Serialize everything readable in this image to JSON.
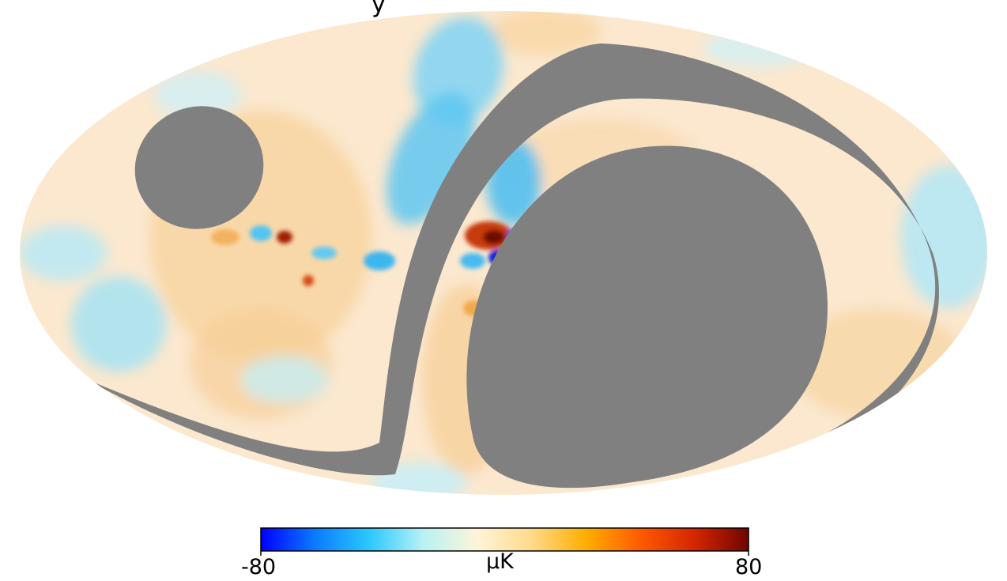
{
  "chart_data": {
    "type": "heatmap",
    "projection": "mollweide",
    "title_fragment": "y",
    "mask_color": "#808080",
    "colorbar": {
      "min": -80,
      "max": 80,
      "min_label": "-80",
      "max_label": "80",
      "unit": "μK",
      "colors": [
        "#0000ff",
        "#0a7bff",
        "#2bc8ff",
        "#b8f2f4",
        "#fff4d8",
        "#ffd98a",
        "#ffae00",
        "#ff5a00",
        "#d42600",
        "#6e0600"
      ]
    }
  }
}
